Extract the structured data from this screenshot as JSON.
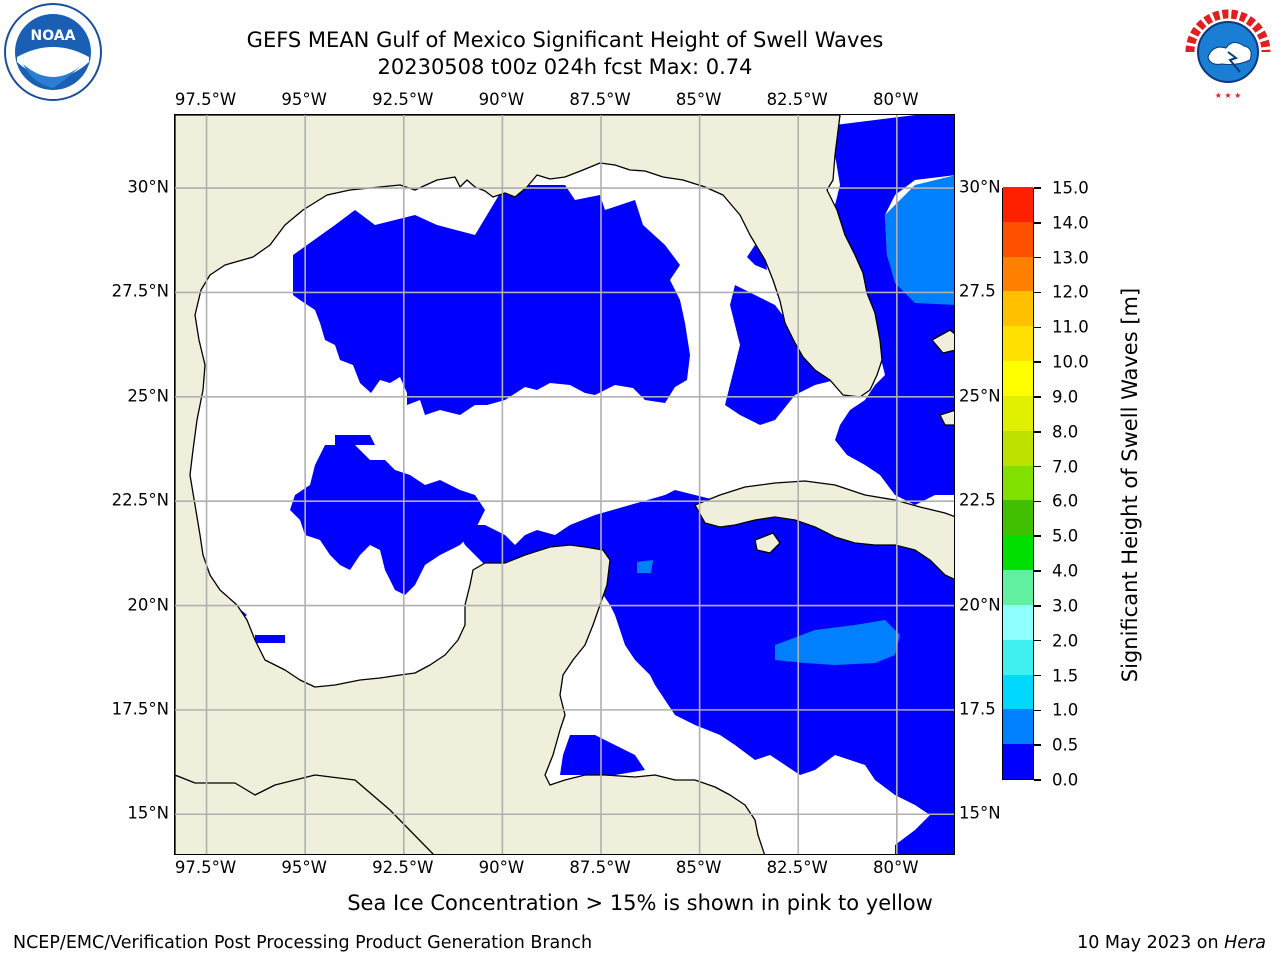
{
  "header": {
    "title": "GEFS MEAN Gulf of Mexico Significant Height of Swell Waves",
    "subtitle": "20230508 t00z 024h fcst   Max: 0.74"
  },
  "logos": {
    "noaa": {
      "text": "NOAA",
      "icon": "noaa-logo-icon"
    },
    "nws": {
      "text": "NATIONAL WEATHER SERVICE",
      "icon": "nws-logo-icon"
    }
  },
  "map": {
    "lon_range": [
      -98.3,
      -78.5
    ],
    "lat_range": [
      14.0,
      31.75
    ],
    "lon_ticks": [
      "97.5°W",
      "95°W",
      "92.5°W",
      "90°W",
      "87.5°W",
      "85°W",
      "82.5°W",
      "80°W"
    ],
    "lat_ticks": [
      "30°N",
      "27.5°N",
      "25°N",
      "22.5°N",
      "20°N",
      "17.5°N",
      "15°N"
    ],
    "right_lat_ticks": [
      "30°N",
      "27.5",
      "25°N",
      "22.5",
      "20°N",
      "17.5",
      "15°N"
    ],
    "grid": true,
    "colors": {
      "land": "#efefdc",
      "water_low": "#ffffff",
      "band_0_0.5": "#0000ff",
      "band_0.5_1.0": "#0080ff",
      "grid": "#b0b0b0",
      "coast": "#000000"
    }
  },
  "colorbar": {
    "label": "Significant Height of Swell Waves [m]",
    "ticks": [
      "0.0",
      "0.5",
      "1.0",
      "1.5",
      "2.0",
      "3.0",
      "4.0",
      "5.0",
      "6.0",
      "7.0",
      "8.0",
      "9.0",
      "10.0",
      "11.0",
      "12.0",
      "13.0",
      "14.0",
      "15.0"
    ],
    "colors": [
      "#0000ff",
      "#0080ff",
      "#00d8ff",
      "#40f0f0",
      "#90ffff",
      "#60f0a0",
      "#00e000",
      "#40c000",
      "#80e000",
      "#c0e000",
      "#e0f000",
      "#ffff00",
      "#ffe000",
      "#ffc000",
      "#ff8000",
      "#ff5000",
      "#ff2000",
      "#ff0000"
    ]
  },
  "footnote": "Sea Ice Concentration > 15% is shown in pink to yellow",
  "footer": {
    "left": "NCEP/EMC/Verification Post Processing Product Generation Branch",
    "right_date": "10 May 2023 on ",
    "right_host": "Hera"
  }
}
